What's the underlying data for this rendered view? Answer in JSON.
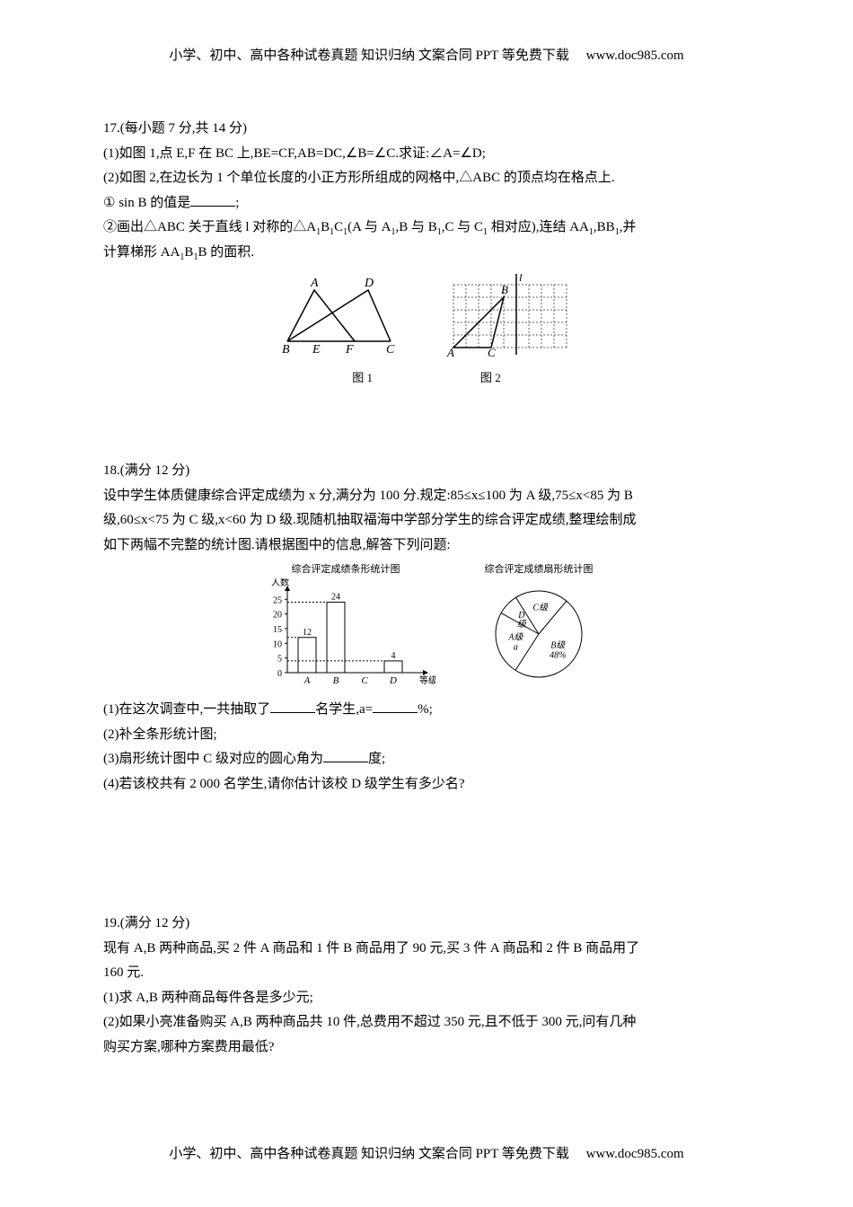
{
  "header": {
    "text": "小学、初中、高中各种试卷真题 知识归纳 文案合同 PPT 等免费下载",
    "url": "www.doc985.com"
  },
  "footer": {
    "text": "小学、初中、高中各种试卷真题 知识归纳 文案合同 PPT 等免费下载",
    "url": "www.doc985.com"
  },
  "q17": {
    "title": "17.(每小题 7 分,共 14 分)",
    "line1": "(1)如图 1,点 E,F 在 BC 上,BE=CF,AB=DC,∠B=∠C.求证:∠A=∠D;",
    "line2": "(2)如图 2,在边长为 1 个单位长度的小正方形所组成的网格中,△ABC 的顶点均在格点上.",
    "line3_pre": "① sin B 的值是",
    "line3_post": ";",
    "line4a": "②画出△ABC 关于直线 l 对称的△A",
    "line4b": "B",
    "line4c": "C",
    "line4d": "(A 与 A",
    "line4e": ",B 与 B",
    "line4f": ",C 与 C",
    "line4g": " 相对应),连结 AA",
    "line4h": ",BB",
    "line4i": ",并",
    "line5a": "计算梯形 AA",
    "line5b": "B",
    "line5c": "B 的面积.",
    "fig1_label": "图 1",
    "fig2_label": "图 2",
    "triangle": {
      "labels": {
        "A": "A",
        "B": "B",
        "C": "C",
        "D": "D",
        "E": "E",
        "F": "F"
      },
      "font_style": "italic",
      "font_size": 14
    },
    "grid": {
      "cols": 9,
      "rows": 5,
      "cell": 14,
      "border_color": "#666666",
      "dash": "2,2",
      "labels": {
        "A": "A",
        "B": "B",
        "C": "C",
        "l": "l"
      },
      "A_pos": [
        4,
        4
      ],
      "B_pos": [
        0,
        0
      ],
      "C_pos": [
        3,
        4
      ],
      "l_col": 5
    }
  },
  "q18": {
    "title": "18.(满分 12 分)",
    "line1": "设中学生体质健康综合评定成绩为 x 分,满分为 100 分.规定:85≤x≤100 为 A 级,75≤x<85 为 B",
    "line2": "级,60≤x<75 为 C 级,x<60 为 D 级.现随机抽取福海中学部分学生的综合评定成绩,整理绘制成",
    "line3": "如下两幅不完整的统计图.请根据图中的信息,解答下列问题:",
    "bar_title": "综合评定成绩条形统计图",
    "pie_title": "综合评定成绩扇形统计图",
    "bar": {
      "ylabel": "人数",
      "xlabel": "等级",
      "categories": [
        "A",
        "B",
        "C",
        "D"
      ],
      "values": [
        12,
        24,
        null,
        4
      ],
      "value_labels": [
        "12",
        "24",
        "",
        "4"
      ],
      "yticks": [
        0,
        5,
        10,
        15,
        20,
        25
      ],
      "ymax": 26,
      "bar_color": "#ffffff",
      "border_color": "#000000",
      "dash_color": "#000000",
      "width": 180,
      "height": 110
    },
    "pie": {
      "slices": [
        {
          "label": "B级",
          "pct_label": "48%",
          "angle": 172.8,
          "start": -50
        },
        {
          "label": "A级",
          "sub": "a",
          "angle": 86.4,
          "start": 122.8
        },
        {
          "label": "D\n级",
          "angle": 28.8,
          "start": 209.2
        },
        {
          "label": "C级",
          "angle": 72,
          "start": 238
        }
      ],
      "radius": 48,
      "stroke": "#000000",
      "fill": "#ffffff"
    },
    "q1_pre": "(1)在这次调查中,一共抽取了",
    "q1_mid": "名学生,a=",
    "q1_post": "%;",
    "q2": "(2)补全条形统计图;",
    "q3_pre": "(3)扇形统计图中 C 级对应的圆心角为",
    "q3_post": "度;",
    "q4": "(4)若该校共有 2 000 名学生,请你估计该校 D 级学生有多少名?"
  },
  "q19": {
    "title": "19.(满分 12 分)",
    "line1": "现有 A,B 两种商品,买 2 件 A 商品和 1 件 B 商品用了 90 元,买 3 件 A 商品和 2 件 B 商品用了",
    "line2": "160 元.",
    "q1": "(1)求 A,B 两种商品每件各是多少元;",
    "q2": "(2)如果小亮准备购买 A,B 两种商品共 10 件,总费用不超过 350 元,且不低于 300 元,问有几种",
    "q2b": "购买方案,哪种方案费用最低?"
  }
}
